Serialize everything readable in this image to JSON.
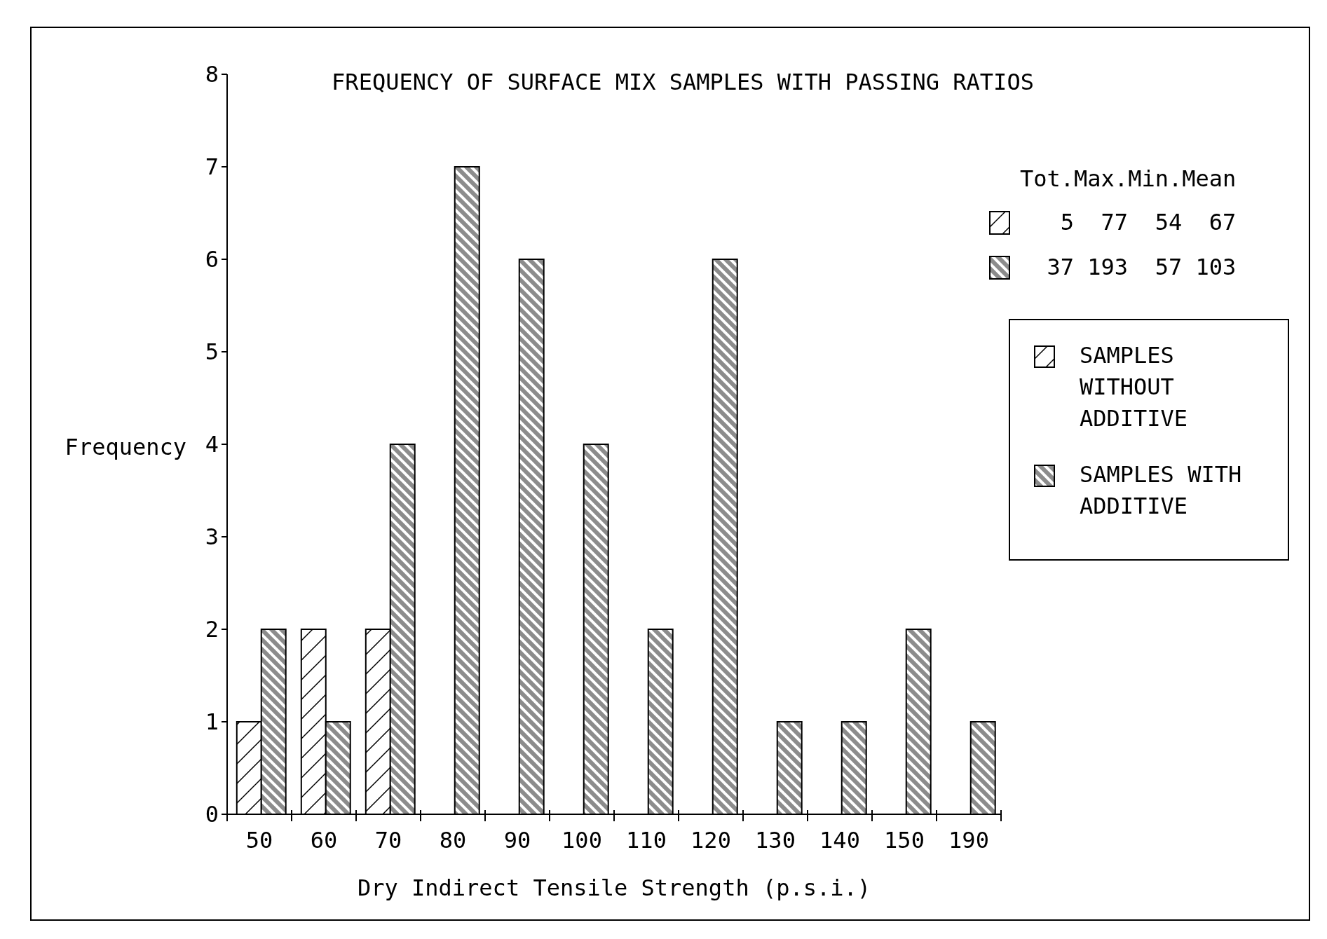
{
  "chart_data": {
    "type": "bar",
    "title": "FREQUENCY OF SURFACE MIX SAMPLES WITH PASSING RATIOS",
    "xlabel": "Dry Indirect Tensile Strength (p.s.i.)",
    "ylabel": "Frequency",
    "categories": [
      "50",
      "60",
      "70",
      "80",
      "90",
      "100",
      "110",
      "120",
      "130",
      "140",
      "150",
      "190"
    ],
    "series": [
      {
        "name": "SAMPLES WITHOUT ADDITIVE",
        "color": "#000000",
        "values": [
          1,
          2,
          2,
          0,
          0,
          0,
          0,
          0,
          0,
          0,
          0,
          0
        ]
      },
      {
        "name": "SAMPLES WITH ADDITIVE",
        "color": "#000000",
        "values": [
          2,
          1,
          4,
          7,
          6,
          4,
          2,
          6,
          1,
          1,
          2,
          1
        ]
      }
    ],
    "ylim": [
      0,
      8
    ],
    "yticks": [
      0,
      1,
      2,
      3,
      4,
      5,
      6,
      7,
      8
    ],
    "legend": "right",
    "annotations": [
      "Tot.Max.Min.Mean",
      "5 77 54 67",
      "37 193 57 103"
    ]
  }
}
